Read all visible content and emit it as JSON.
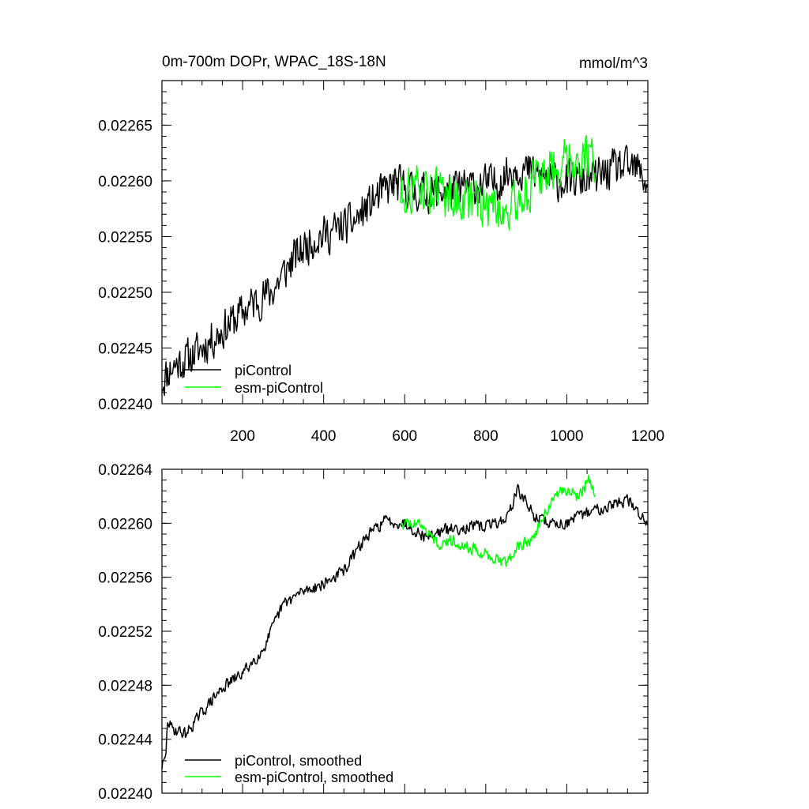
{
  "chart_data": [
    {
      "type": "line",
      "title": "0m-700m DOPr, WPAC_18S-18N",
      "units": "mmol/m^3",
      "xlim": [
        1,
        1200
      ],
      "ylim": [
        0.0224,
        0.02269
      ],
      "xticks": [
        200,
        400,
        600,
        800,
        1000,
        1200
      ],
      "xtick_labels": [
        "200",
        "400",
        "600",
        "800",
        "1000",
        "1200"
      ],
      "yticks": [
        0.0224,
        0.02245,
        0.0225,
        0.02255,
        0.0226,
        0.02265
      ],
      "ytick_labels": [
        "0.02240",
        "0.02245",
        "0.02250",
        "0.02255",
        "0.02260",
        "0.02265"
      ],
      "grid": false,
      "legend": "bottom-left",
      "series": [
        {
          "name": "piControl",
          "color": "#000000",
          "x_range": [
            1,
            1200
          ],
          "noise": 2.2e-05,
          "anchors": [
            [
              1,
              0.02242
            ],
            [
              25,
              0.022433
            ],
            [
              75,
              0.022443
            ],
            [
              125,
              0.022458
            ],
            [
              175,
              0.022474
            ],
            [
              225,
              0.02249
            ],
            [
              275,
              0.022502
            ],
            [
              325,
              0.02253
            ],
            [
              375,
              0.022548
            ],
            [
              425,
              0.022555
            ],
            [
              475,
              0.022563
            ],
            [
              525,
              0.022583
            ],
            [
              575,
              0.022598
            ],
            [
              625,
              0.02259
            ],
            [
              675,
              0.02259
            ],
            [
              725,
              0.022592
            ],
            [
              775,
              0.022596
            ],
            [
              825,
              0.022598
            ],
            [
              875,
              0.022613
            ],
            [
              925,
              0.022605
            ],
            [
              975,
              0.0226
            ],
            [
              1025,
              0.0226
            ],
            [
              1075,
              0.022603
            ],
            [
              1125,
              0.022612
            ],
            [
              1175,
              0.02261
            ],
            [
              1200,
              0.022597
            ]
          ]
        },
        {
          "name": "esm-piControl",
          "color": "#00ff00",
          "x_range": [
            590,
            1070
          ],
          "noise": 2.6e-05,
          "anchors": [
            [
              590,
              0.02259
            ],
            [
              625,
              0.022594
            ],
            [
              675,
              0.022592
            ],
            [
              725,
              0.022585
            ],
            [
              775,
              0.02258
            ],
            [
              825,
              0.022577
            ],
            [
              860,
              0.022573
            ],
            [
              900,
              0.02259
            ],
            [
              950,
              0.02261
            ],
            [
              1000,
              0.02262
            ],
            [
              1050,
              0.022622
            ],
            [
              1070,
              0.02262
            ]
          ]
        }
      ]
    },
    {
      "type": "line",
      "title": "",
      "xlim": [
        1,
        1200
      ],
      "ylim": [
        0.0224,
        0.02264
      ],
      "xticks": [
        200,
        400,
        600,
        800,
        1000,
        1200
      ],
      "yticks": [
        0.0224,
        0.02244,
        0.02248,
        0.02252,
        0.02256,
        0.0226,
        0.02264
      ],
      "ytick_labels": [
        "0.02240",
        "0.02244",
        "0.02248",
        "0.02252",
        "0.02256",
        "0.02260",
        "0.02264"
      ],
      "grid": false,
      "legend": "bottom-left",
      "series": [
        {
          "name": "piControl, smoothed",
          "color": "#000000",
          "x_range": [
            1,
            1200
          ],
          "noise": 5.5e-06,
          "anchors": [
            [
              1,
              0.02242
            ],
            [
              10,
              0.022425
            ],
            [
              15,
              0.022454
            ],
            [
              25,
              0.022448
            ],
            [
              60,
              0.022444
            ],
            [
              100,
              0.02246
            ],
            [
              150,
              0.022478
            ],
            [
              200,
              0.022489
            ],
            [
              250,
              0.022506
            ],
            [
              300,
              0.02254
            ],
            [
              350,
              0.02255
            ],
            [
              400,
              0.022555
            ],
            [
              450,
              0.022565
            ],
            [
              500,
              0.022588
            ],
            [
              550,
              0.022602
            ],
            [
              600,
              0.0226
            ],
            [
              650,
              0.02259
            ],
            [
              700,
              0.022595
            ],
            [
              750,
              0.022597
            ],
            [
              800,
              0.022598
            ],
            [
              850,
              0.022603
            ],
            [
              880,
              0.022625
            ],
            [
              920,
              0.022605
            ],
            [
              960,
              0.0226
            ],
            [
              1000,
              0.0226
            ],
            [
              1050,
              0.022608
            ],
            [
              1100,
              0.022613
            ],
            [
              1150,
              0.022617
            ],
            [
              1200,
              0.0226
            ]
          ]
        },
        {
          "name": "esm-piControl, smoothed",
          "color": "#00ff00",
          "x_range": [
            590,
            1070
          ],
          "noise": 5.5e-06,
          "anchors": [
            [
              590,
              0.0226
            ],
            [
              640,
              0.0226
            ],
            [
              680,
              0.022585
            ],
            [
              720,
              0.022588
            ],
            [
              760,
              0.022582
            ],
            [
              800,
              0.022577
            ],
            [
              850,
              0.022571
            ],
            [
              880,
              0.022582
            ],
            [
              920,
              0.02259
            ],
            [
              950,
              0.02261
            ],
            [
              990,
              0.022625
            ],
            [
              1030,
              0.02262
            ],
            [
              1055,
              0.022633
            ],
            [
              1070,
              0.02262
            ]
          ]
        }
      ]
    }
  ]
}
